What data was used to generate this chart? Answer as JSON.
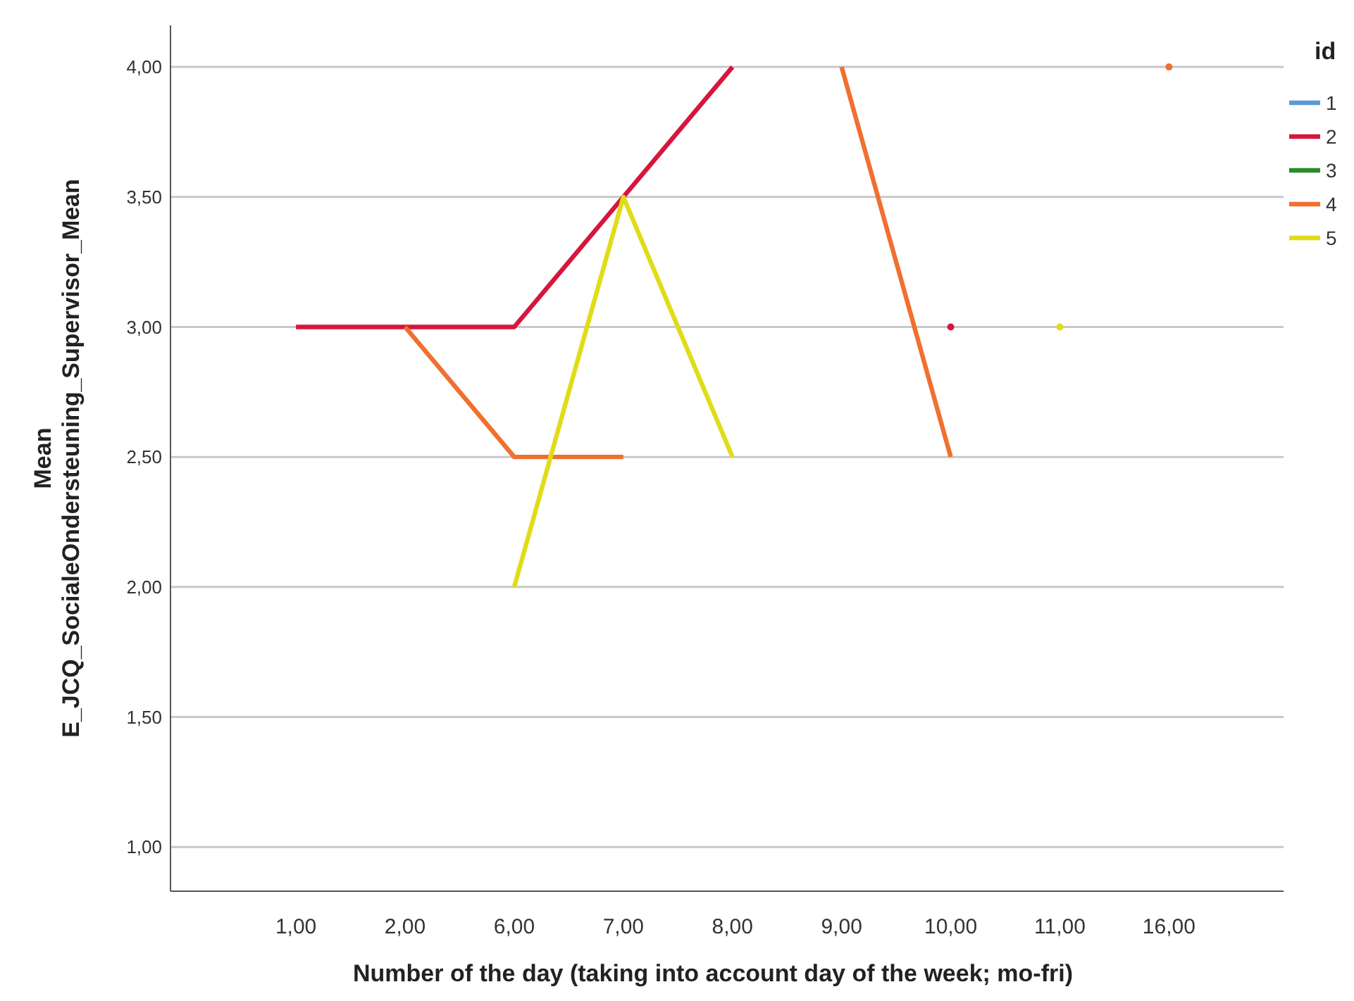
{
  "chart_data": {
    "type": "line",
    "xlabel": "Number of the day (taking into account day of the week; mo-fri)",
    "ylabel": "Mean E_JCQ_SocialeOndersteuning_Supervisor_Mean",
    "legend_title": "id",
    "legend": "right",
    "grid": "y",
    "marker": "none",
    "line_style": "solid",
    "categories": [
      "1,00",
      "2,00",
      "6,00",
      "7,00",
      "8,00",
      "9,00",
      "10,00",
      "11,00",
      "16,00"
    ],
    "ylim": [
      0.83,
      4.16
    ],
    "yticks": [
      {
        "value": 1,
        "label": "1,00"
      },
      {
        "value": 1.5,
        "label": "1,50"
      },
      {
        "value": 2,
        "label": "2,00"
      },
      {
        "value": 2.5,
        "label": "2,50"
      },
      {
        "value": 3,
        "label": "3,00"
      },
      {
        "value": 3.5,
        "label": "3,50"
      },
      {
        "value": 4,
        "label": "4,00"
      }
    ],
    "series": [
      {
        "name": "1",
        "color": "#5b9bd5",
        "values": [
          null,
          null,
          null,
          null,
          null,
          null,
          null,
          null,
          null
        ]
      },
      {
        "name": "2",
        "color": "#d6163c",
        "values": [
          3,
          3,
          3,
          3.5,
          4,
          null,
          3,
          null,
          null
        ]
      },
      {
        "name": "3",
        "color": "#2b8a2b",
        "values": [
          null,
          null,
          null,
          null,
          null,
          null,
          null,
          null,
          null
        ]
      },
      {
        "name": "4",
        "color": "#f07030",
        "values": [
          null,
          3,
          2.5,
          2.5,
          null,
          4,
          2.5,
          null,
          4
        ]
      },
      {
        "name": "5",
        "color": "#e0dc18",
        "values": [
          null,
          null,
          2,
          3.5,
          2.5,
          null,
          null,
          3,
          null
        ]
      }
    ]
  }
}
